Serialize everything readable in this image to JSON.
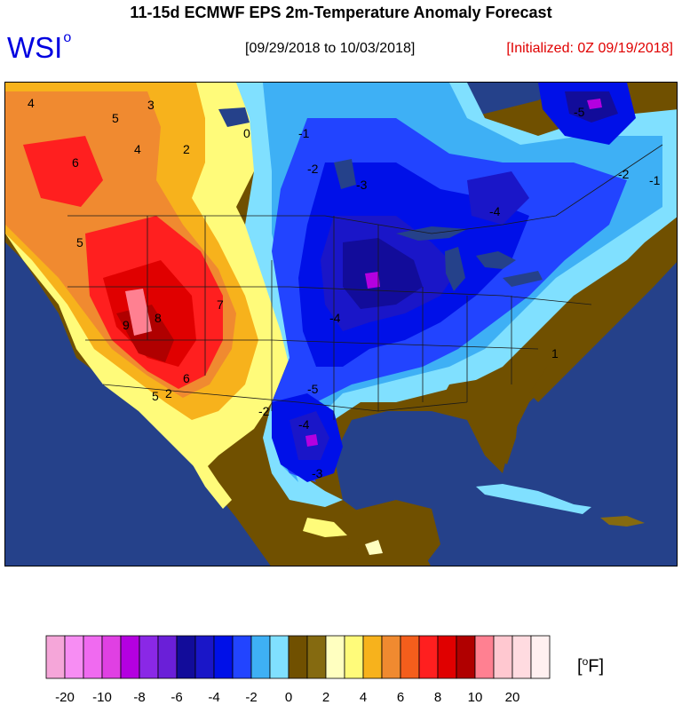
{
  "header": {
    "title": "11-15d ECMWF EPS 2m-Temperature Anomaly Forecast",
    "logo": "WSI",
    "logo_mark": "o",
    "date_range": "[09/29/2018 to 10/03/2018]",
    "initialized": "[Initialized: 0Z 09/19/2018]"
  },
  "colors": {
    "ocean": "#25418a",
    "title": "#000000",
    "logo": "#0000e0",
    "initialized": "#e00000"
  },
  "map": {
    "contour_labels": [
      "4",
      "5",
      "3",
      "6",
      "4",
      "2",
      "5",
      "9",
      "8",
      "7",
      "6",
      "5",
      "0",
      "-1",
      "-2",
      "-3",
      "-4",
      "-5",
      "-4",
      "-3",
      "-2",
      "-5",
      "-4",
      "-2",
      "-1",
      "1",
      "2"
    ]
  },
  "legend": {
    "unit": "[oF]",
    "swatch_colors": [
      "#f5a6d9",
      "#f78df3",
      "#f06af0",
      "#e040e3",
      "#b400e0",
      "#8a28e6",
      "#6a1fd8",
      "#120c9a",
      "#1a16c8",
      "#0010e8",
      "#2244ff",
      "#3eb0f5",
      "#80e0ff",
      "#705000",
      "#856a10",
      "#ffffc0",
      "#fffb7a",
      "#f7b21c",
      "#f08a30",
      "#f45e1c",
      "#ff1f1f",
      "#e00000",
      "#b00000",
      "#ff8091",
      "#ffc8d0",
      "#ffdbe0",
      "#fff0f0"
    ],
    "tick_labels": [
      "-20",
      "-10",
      "-8",
      "-6",
      "-4",
      "-2",
      "0",
      "2",
      "4",
      "6",
      "8",
      "10",
      "20"
    ]
  }
}
